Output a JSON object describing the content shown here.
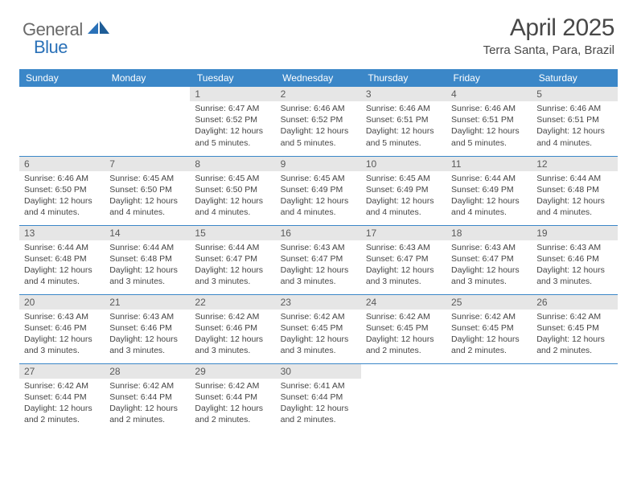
{
  "logo": {
    "text1": "General",
    "text2": "Blue",
    "shape_color": "#2a71b8"
  },
  "title": "April 2025",
  "location": "Terra Santa, Para, Brazil",
  "colors": {
    "header_bg": "#3b87c8",
    "header_text": "#ffffff",
    "daynum_bg": "#e6e6e6",
    "daynum_text": "#5a5a5a",
    "body_text": "#454545",
    "rule": "#3b87c8"
  },
  "weekdays": [
    "Sunday",
    "Monday",
    "Tuesday",
    "Wednesday",
    "Thursday",
    "Friday",
    "Saturday"
  ],
  "weeks": [
    [
      null,
      null,
      {
        "n": "1",
        "sr": "6:47 AM",
        "ss": "6:52 PM",
        "dl": "12 hours and 5 minutes."
      },
      {
        "n": "2",
        "sr": "6:46 AM",
        "ss": "6:52 PM",
        "dl": "12 hours and 5 minutes."
      },
      {
        "n": "3",
        "sr": "6:46 AM",
        "ss": "6:51 PM",
        "dl": "12 hours and 5 minutes."
      },
      {
        "n": "4",
        "sr": "6:46 AM",
        "ss": "6:51 PM",
        "dl": "12 hours and 5 minutes."
      },
      {
        "n": "5",
        "sr": "6:46 AM",
        "ss": "6:51 PM",
        "dl": "12 hours and 4 minutes."
      }
    ],
    [
      {
        "n": "6",
        "sr": "6:46 AM",
        "ss": "6:50 PM",
        "dl": "12 hours and 4 minutes."
      },
      {
        "n": "7",
        "sr": "6:45 AM",
        "ss": "6:50 PM",
        "dl": "12 hours and 4 minutes."
      },
      {
        "n": "8",
        "sr": "6:45 AM",
        "ss": "6:50 PM",
        "dl": "12 hours and 4 minutes."
      },
      {
        "n": "9",
        "sr": "6:45 AM",
        "ss": "6:49 PM",
        "dl": "12 hours and 4 minutes."
      },
      {
        "n": "10",
        "sr": "6:45 AM",
        "ss": "6:49 PM",
        "dl": "12 hours and 4 minutes."
      },
      {
        "n": "11",
        "sr": "6:44 AM",
        "ss": "6:49 PM",
        "dl": "12 hours and 4 minutes."
      },
      {
        "n": "12",
        "sr": "6:44 AM",
        "ss": "6:48 PM",
        "dl": "12 hours and 4 minutes."
      }
    ],
    [
      {
        "n": "13",
        "sr": "6:44 AM",
        "ss": "6:48 PM",
        "dl": "12 hours and 4 minutes."
      },
      {
        "n": "14",
        "sr": "6:44 AM",
        "ss": "6:48 PM",
        "dl": "12 hours and 3 minutes."
      },
      {
        "n": "15",
        "sr": "6:44 AM",
        "ss": "6:47 PM",
        "dl": "12 hours and 3 minutes."
      },
      {
        "n": "16",
        "sr": "6:43 AM",
        "ss": "6:47 PM",
        "dl": "12 hours and 3 minutes."
      },
      {
        "n": "17",
        "sr": "6:43 AM",
        "ss": "6:47 PM",
        "dl": "12 hours and 3 minutes."
      },
      {
        "n": "18",
        "sr": "6:43 AM",
        "ss": "6:47 PM",
        "dl": "12 hours and 3 minutes."
      },
      {
        "n": "19",
        "sr": "6:43 AM",
        "ss": "6:46 PM",
        "dl": "12 hours and 3 minutes."
      }
    ],
    [
      {
        "n": "20",
        "sr": "6:43 AM",
        "ss": "6:46 PM",
        "dl": "12 hours and 3 minutes."
      },
      {
        "n": "21",
        "sr": "6:43 AM",
        "ss": "6:46 PM",
        "dl": "12 hours and 3 minutes."
      },
      {
        "n": "22",
        "sr": "6:42 AM",
        "ss": "6:46 PM",
        "dl": "12 hours and 3 minutes."
      },
      {
        "n": "23",
        "sr": "6:42 AM",
        "ss": "6:45 PM",
        "dl": "12 hours and 3 minutes."
      },
      {
        "n": "24",
        "sr": "6:42 AM",
        "ss": "6:45 PM",
        "dl": "12 hours and 2 minutes."
      },
      {
        "n": "25",
        "sr": "6:42 AM",
        "ss": "6:45 PM",
        "dl": "12 hours and 2 minutes."
      },
      {
        "n": "26",
        "sr": "6:42 AM",
        "ss": "6:45 PM",
        "dl": "12 hours and 2 minutes."
      }
    ],
    [
      {
        "n": "27",
        "sr": "6:42 AM",
        "ss": "6:44 PM",
        "dl": "12 hours and 2 minutes."
      },
      {
        "n": "28",
        "sr": "6:42 AM",
        "ss": "6:44 PM",
        "dl": "12 hours and 2 minutes."
      },
      {
        "n": "29",
        "sr": "6:42 AM",
        "ss": "6:44 PM",
        "dl": "12 hours and 2 minutes."
      },
      {
        "n": "30",
        "sr": "6:41 AM",
        "ss": "6:44 PM",
        "dl": "12 hours and 2 minutes."
      },
      null,
      null,
      null
    ]
  ],
  "labels": {
    "sunrise": "Sunrise:",
    "sunset": "Sunset:",
    "daylight": "Daylight:"
  }
}
